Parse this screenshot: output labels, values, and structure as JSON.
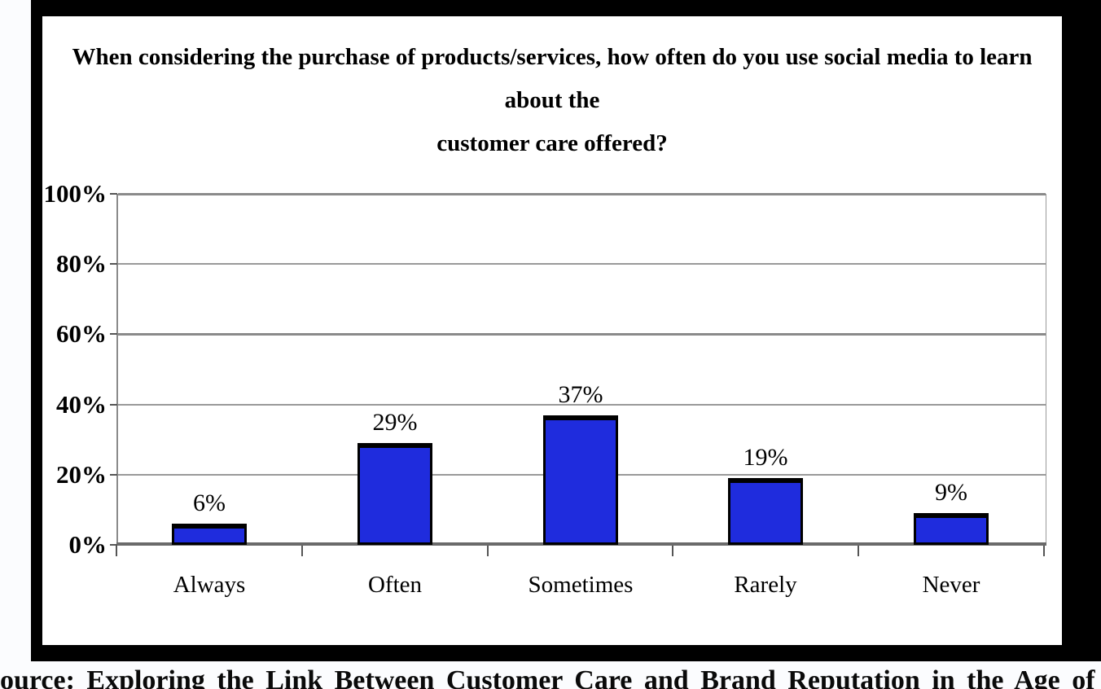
{
  "chart_data": {
    "type": "bar",
    "title": "When considering the purchase of products/services, how often do you use social media to learn about the customer care offered?",
    "title_lines": [
      "When considering the purchase of products/services, how often do you use social media to learn about the",
      "customer care offered?"
    ],
    "categories": [
      "Always",
      "Often",
      "Sometimes",
      "Rarely",
      "Never"
    ],
    "values": [
      6,
      29,
      37,
      19,
      9
    ],
    "value_labels": [
      "6%",
      "29%",
      "37%",
      "19%",
      "9%"
    ],
    "y_tick_labels": [
      "0%",
      "20%",
      "40%",
      "60%",
      "80%",
      "100%"
    ],
    "ylim": [
      0,
      100
    ],
    "y_step": 20,
    "grid": true,
    "legend": "none",
    "bar_color": "#1f2cdd",
    "bar_border_color": "#000000",
    "frame_color": "#000000"
  },
  "source_note": "ource: Exploring the Link Between Customer Care and Brand Reputation in the Age of SM ( Barne"
}
